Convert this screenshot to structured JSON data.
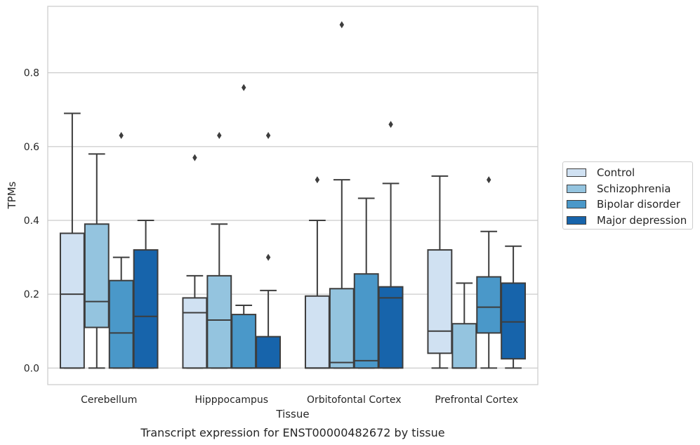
{
  "chart_data": {
    "type": "boxplot",
    "xlabel": "Tissue",
    "ylabel": "TPMs",
    "caption": "Transcript expression for ENST00000482672 by tissue",
    "ylim": [
      -0.045,
      0.98
    ],
    "yticks": [
      "0.0",
      "0.2",
      "0.4",
      "0.6",
      "0.8"
    ],
    "grid": "horizontal",
    "legend_position": "right",
    "categories": [
      "Cerebellum",
      "Hipppocampus",
      "Orbitofontal Cortex",
      "Prefrontal Cortex"
    ],
    "series": [
      {
        "name": "Control",
        "color": "#d0e1f2",
        "boxes": [
          {
            "min": 0.0,
            "q1": 0.0,
            "median": 0.2,
            "q3": 0.365,
            "max": 0.69,
            "outliers": []
          },
          {
            "min": 0.0,
            "q1": 0.0,
            "median": 0.15,
            "q3": 0.19,
            "max": 0.25,
            "outliers": [
              0.57
            ]
          },
          {
            "min": 0.0,
            "q1": 0.0,
            "median": 0.0,
            "q3": 0.195,
            "max": 0.4,
            "outliers": [
              0.51
            ]
          },
          {
            "min": 0.0,
            "q1": 0.04,
            "median": 0.1,
            "q3": 0.32,
            "max": 0.52,
            "outliers": []
          }
        ]
      },
      {
        "name": "Schizophrenia",
        "color": "#94c4df",
        "boxes": [
          {
            "min": 0.0,
            "q1": 0.11,
            "median": 0.18,
            "q3": 0.39,
            "max": 0.58,
            "outliers": []
          },
          {
            "min": 0.0,
            "q1": 0.0,
            "median": 0.13,
            "q3": 0.25,
            "max": 0.39,
            "outliers": [
              0.63
            ]
          },
          {
            "min": 0.0,
            "q1": 0.0,
            "median": 0.015,
            "q3": 0.215,
            "max": 0.51,
            "outliers": [
              0.93
            ]
          },
          {
            "min": 0.0,
            "q1": 0.0,
            "median": 0.0,
            "q3": 0.12,
            "max": 0.23,
            "outliers": []
          }
        ]
      },
      {
        "name": "Bipolar disorder",
        "color": "#4a98c9",
        "boxes": [
          {
            "min": 0.0,
            "q1": 0.0,
            "median": 0.095,
            "q3": 0.237,
            "max": 0.3,
            "outliers": [
              0.63
            ]
          },
          {
            "min": 0.0,
            "q1": 0.0,
            "median": 0.0,
            "q3": 0.145,
            "max": 0.17,
            "outliers": [
              0.76
            ]
          },
          {
            "min": 0.0,
            "q1": 0.0,
            "median": 0.02,
            "q3": 0.255,
            "max": 0.46,
            "outliers": []
          },
          {
            "min": 0.0,
            "q1": 0.095,
            "median": 0.165,
            "q3": 0.247,
            "max": 0.37,
            "outliers": [
              0.51
            ]
          }
        ]
      },
      {
        "name": "Major depression",
        "color": "#1764ab",
        "boxes": [
          {
            "min": 0.0,
            "q1": 0.0,
            "median": 0.14,
            "q3": 0.32,
            "max": 0.4,
            "outliers": []
          },
          {
            "min": 0.0,
            "q1": 0.0,
            "median": 0.0,
            "q3": 0.085,
            "max": 0.21,
            "outliers": [
              0.3,
              0.63
            ]
          },
          {
            "min": 0.0,
            "q1": 0.0,
            "median": 0.19,
            "q3": 0.22,
            "max": 0.5,
            "outliers": [
              0.66
            ]
          },
          {
            "min": 0.0,
            "q1": 0.025,
            "median": 0.125,
            "q3": 0.23,
            "max": 0.33,
            "outliers": []
          }
        ]
      }
    ]
  }
}
